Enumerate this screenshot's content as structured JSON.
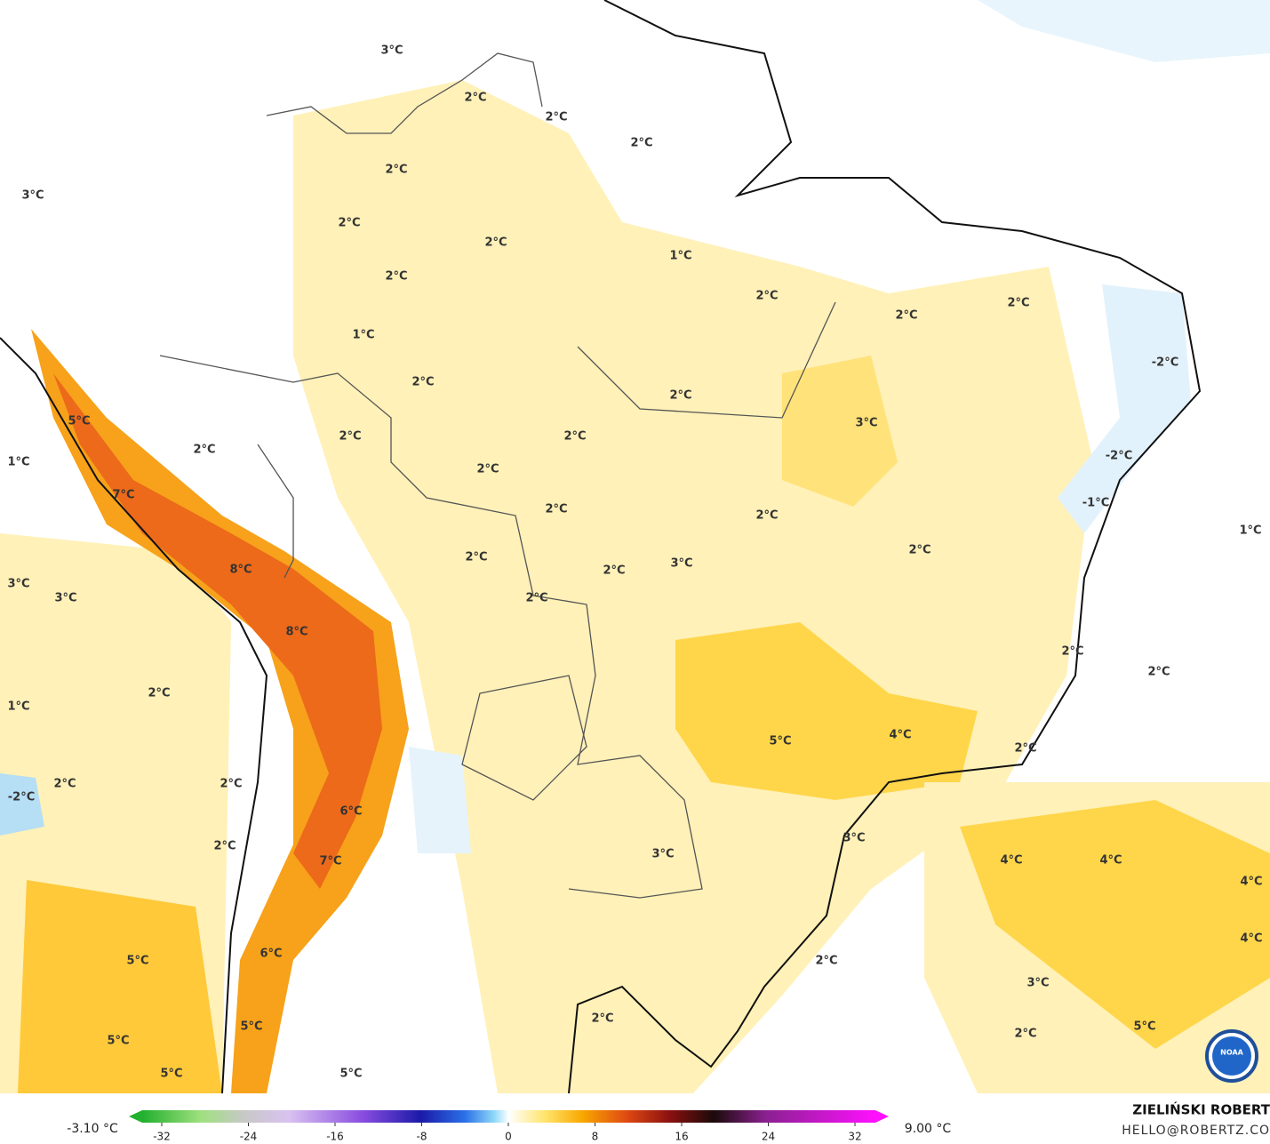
{
  "map": {
    "labels": [
      "3°C",
      "2°C",
      "2°C",
      "2°C",
      "3°C",
      "2°C",
      "2°C",
      "2°C",
      "2°C",
      "1°C",
      "2°C",
      "2°C",
      "2°C",
      "1°C",
      "-2°C",
      "2°C",
      "2°C",
      "5°C",
      "3°C",
      "2°C",
      "2°C",
      "2°C",
      "1°C",
      "2°C",
      "-2°C",
      "7°C",
      "-1°C",
      "2°C",
      "2°C",
      "1°C",
      "2°C",
      "8°C",
      "2°C",
      "2°C",
      "3°C",
      "3°C",
      "3°C",
      "2°C",
      "8°C",
      "2°C",
      "2°C",
      "2°C",
      "1°C",
      "5°C",
      "4°C",
      "2°C",
      "2°C",
      "2°C",
      "-2°C",
      "6°C",
      "3°C",
      "2°C",
      "3°C",
      "7°C",
      "4°C",
      "4°C",
      "4°C",
      "4°C",
      "6°C",
      "5°C",
      "2°C",
      "3°C",
      "2°C",
      "5°C",
      "5°C",
      "2°C",
      "5°C",
      "5°C",
      "5°C"
    ]
  },
  "colorbar": {
    "min_label": "-3.10 °C",
    "max_label": "9.00 °C",
    "ticks": [
      -32,
      -24,
      -16,
      -8,
      0,
      8,
      16,
      24,
      32
    ]
  },
  "credits": {
    "author": "ZIELIŃSKI ROBERT",
    "contact": "HELLO@ROBERTZ.CO",
    "logo": "NOAA"
  }
}
